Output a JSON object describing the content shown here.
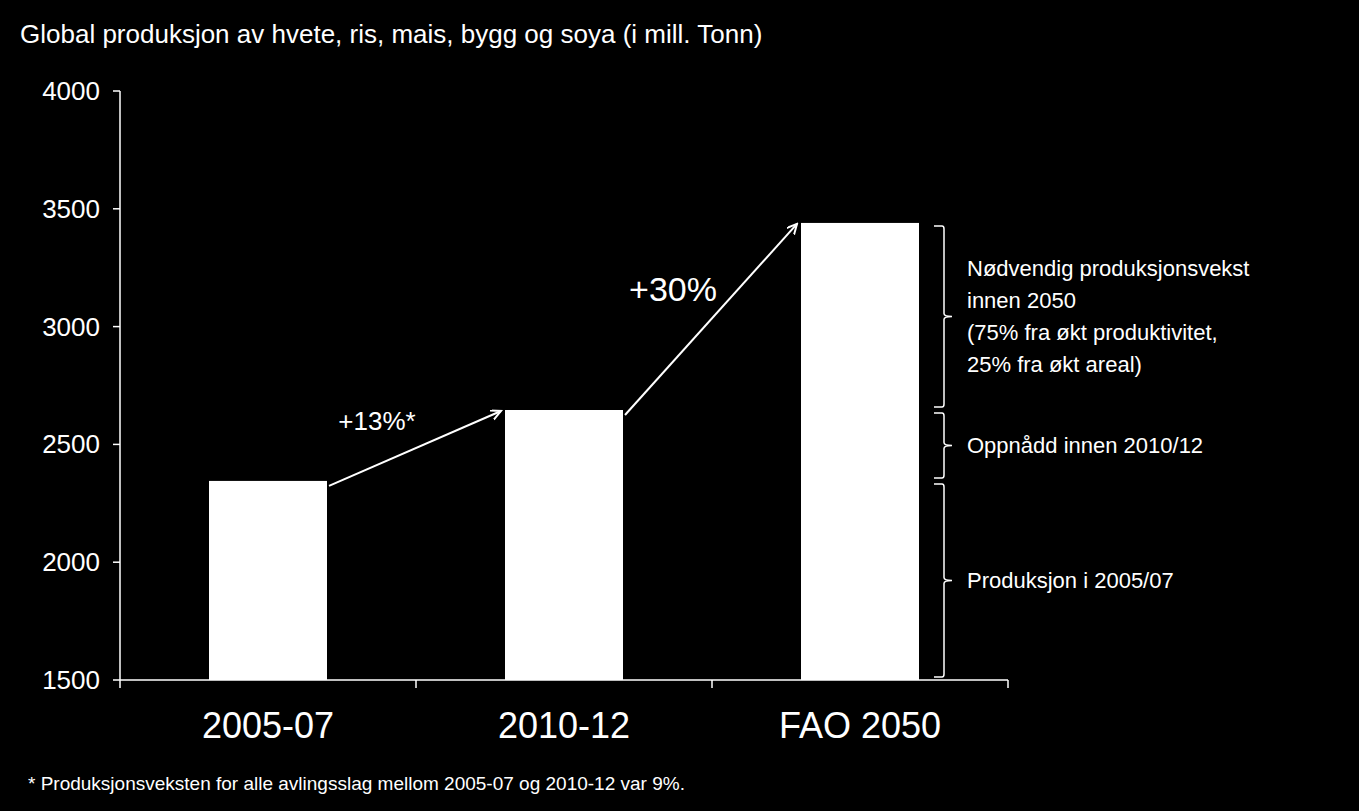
{
  "chart_data": {
    "type": "bar",
    "title": "Global produksjon av hvete, ris, mais, bygg og soya (i mill. Tonn)",
    "categories": [
      "2005-07",
      "2010-12",
      "FAO 2050"
    ],
    "values": [
      2345,
      2646,
      3440
    ],
    "color": "#ffffff",
    "ylim": [
      1500,
      4000
    ],
    "yticks": [
      1500,
      2000,
      2500,
      3000,
      3500,
      4000
    ],
    "grid": false,
    "annotations": [
      "+13%*",
      "+30%"
    ],
    "brace_labels": [
      [
        "Produksjon i 2005/07"
      ],
      [
        "Oppnådd innen 2010/12"
      ],
      [
        "Nødvendig produksjonsvekst",
        "innen 2050",
        "(75% fra økt produktivitet,",
        "25% fra økt areal)"
      ]
    ],
    "footnote": "* Produksjonsveksten for alle avlingsslag mellom 2005-07 og 2010-12 var 9%."
  }
}
